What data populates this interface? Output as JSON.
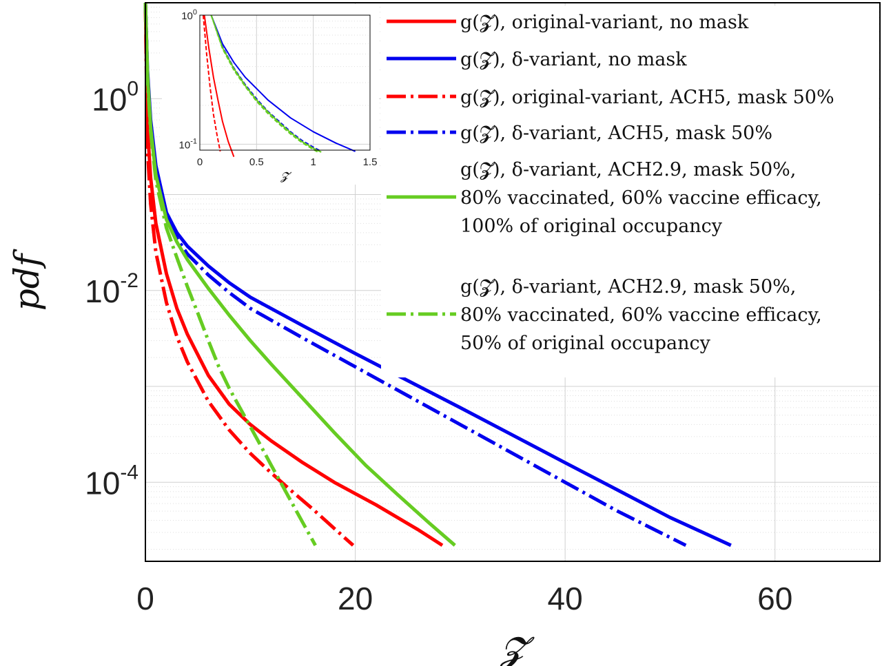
{
  "chart_data": [
    {
      "type": "line",
      "title": "",
      "xlabel": "𝓩",
      "ylabel": "pdf",
      "x_scale": "linear",
      "y_scale": "log",
      "xlim": [
        0,
        70
      ],
      "ylim": [
        1.5e-05,
        10
      ],
      "grid": true,
      "x_ticks": [
        0,
        20,
        40,
        60
      ],
      "x_tick_labels": [
        "0",
        "20",
        "40",
        "60"
      ],
      "y_ticks": [
        1,
        0.01,
        0.0001
      ],
      "y_tick_labels": [
        {
          "base": "10",
          "exp": "0"
        },
        {
          "base": "10",
          "exp": "-2"
        },
        {
          "base": "10",
          "exp": "-4"
        }
      ],
      "legend_placement": "top-right",
      "series": [
        {
          "label_lines": [
            "g(𝓩), original-variant, no mask"
          ],
          "color": "#ff0000",
          "dash": "solid",
          "x": [
            0,
            0.2,
            0.5,
            1,
            2,
            3,
            4,
            6,
            8,
            10,
            12,
            15,
            18,
            22,
            26,
            28.3
          ],
          "y": [
            10,
            0.5,
            0.15,
            0.05,
            0.015,
            0.0065,
            0.0035,
            0.0013,
            0.00065,
            0.0004,
            0.00027,
            0.00016,
            0.0001,
            5.8e-05,
            3.2e-05,
            2.2e-05
          ]
        },
        {
          "label_lines": [
            "g(𝓩), δ-variant, no mask"
          ],
          "color": "#0000ee",
          "dash": "solid",
          "x": [
            0,
            0.2,
            0.5,
            1,
            2,
            3,
            4,
            6,
            8,
            10,
            15,
            20,
            25,
            30,
            35,
            40,
            45,
            50,
            55.8
          ],
          "y": [
            10,
            2,
            0.6,
            0.2,
            0.065,
            0.04,
            0.029,
            0.018,
            0.012,
            0.0085,
            0.0043,
            0.0022,
            0.00115,
            0.0006,
            0.00031,
            0.00016,
            8.3e-05,
            4.3e-05,
            2.2e-05
          ]
        },
        {
          "label_lines": [
            "g(𝓩), original-variant, ACH5, mask 50%"
          ],
          "color": "#ff0000",
          "dash": "dashdot",
          "x": [
            0,
            0.2,
            0.5,
            1,
            2,
            3,
            4,
            6,
            8,
            10,
            12,
            14,
            16,
            18,
            19.8
          ],
          "y": [
            10,
            0.3,
            0.08,
            0.025,
            0.0075,
            0.0033,
            0.0018,
            0.0007,
            0.00035,
            0.0002,
            0.000125,
            8e-05,
            5.2e-05,
            3.3e-05,
            2.2e-05
          ]
        },
        {
          "label_lines": [
            "g(𝓩), δ-variant, ACH5, mask 50%"
          ],
          "color": "#0000ee",
          "dash": "dashdot",
          "x": [
            0,
            0.2,
            0.5,
            1,
            2,
            3,
            4,
            6,
            8,
            10,
            15,
            20,
            25,
            30,
            35,
            40,
            45,
            51.5
          ],
          "y": [
            10,
            1.8,
            0.55,
            0.18,
            0.06,
            0.035,
            0.024,
            0.0145,
            0.0095,
            0.0065,
            0.0032,
            0.0016,
            0.0008,
            0.0004,
            0.0002,
            0.0001,
            5e-05,
            2.2e-05
          ]
        },
        {
          "label_lines": [
            "g(𝓩), δ-variant, ACH2.9, mask 50%,",
            "80% vaccinated, 60% vaccine efficacy,",
            "100% of original occupancy"
          ],
          "color": "#66cc22",
          "dash": "solid",
          "x": [
            0,
            0.2,
            0.5,
            1,
            2,
            3,
            4,
            6,
            8,
            10,
            12,
            15,
            18,
            21,
            24,
            27,
            29.5
          ],
          "y": [
            10,
            1.8,
            0.5,
            0.16,
            0.055,
            0.032,
            0.021,
            0.0105,
            0.0055,
            0.003,
            0.0017,
            0.00075,
            0.00033,
            0.00015,
            7.5e-05,
            3.8e-05,
            2.2e-05
          ]
        },
        {
          "label_lines": [
            "g(𝓩), δ-variant, ACH2.9, mask 50%,",
            "80% vaccinated, 60% vaccine efficacy,",
            "50% of original occupancy"
          ],
          "color": "#66cc22",
          "dash": "dashdot",
          "x": [
            0,
            0.2,
            0.5,
            1,
            2,
            3,
            4,
            5,
            6,
            7,
            8,
            9,
            10,
            11,
            12,
            13,
            14,
            15,
            16.2
          ],
          "y": [
            10,
            1.6,
            0.45,
            0.14,
            0.045,
            0.022,
            0.011,
            0.0058,
            0.003,
            0.0016,
            0.00095,
            0.0006,
            0.00038,
            0.00024,
            0.00015,
            9.5e-05,
            6e-05,
            3.8e-05,
            2.2e-05
          ]
        }
      ]
    },
    {
      "type": "line",
      "title": "",
      "inset": true,
      "xlabel": "𝓩",
      "ylabel": "",
      "x_scale": "linear",
      "y_scale": "log",
      "xlim": [
        0,
        1.5
      ],
      "ylim": [
        0.09,
        1
      ],
      "grid": true,
      "x_ticks": [
        0,
        0.5,
        1,
        1.5
      ],
      "x_tick_labels": [
        "0",
        "0.5",
        "1",
        "1.5"
      ],
      "y_ticks": [
        1,
        0.1
      ],
      "y_tick_labels": [
        {
          "base": "10",
          "exp": "0"
        },
        {
          "base": "10",
          "exp": "-1"
        }
      ],
      "series": [
        {
          "color": "#ff0000",
          "dash": "solid",
          "x": [
            0.04,
            0.08,
            0.12,
            0.16,
            0.2,
            0.25,
            0.3
          ],
          "y": [
            1,
            0.55,
            0.33,
            0.22,
            0.15,
            0.105,
            0.08
          ]
        },
        {
          "color": "#ff0000",
          "dash": "dashed",
          "x": [
            0.03,
            0.06,
            0.09,
            0.12,
            0.15,
            0.18
          ],
          "y": [
            1,
            0.5,
            0.28,
            0.17,
            0.12,
            0.088
          ]
        },
        {
          "color": "#0000ee",
          "dash": "solid",
          "x": [
            0.1,
            0.2,
            0.3,
            0.4,
            0.5,
            0.6,
            0.8,
            1.0,
            1.2,
            1.37
          ],
          "y": [
            1,
            0.6,
            0.43,
            0.33,
            0.27,
            0.22,
            0.16,
            0.125,
            0.102,
            0.088
          ]
        },
        {
          "color": "#0000ee",
          "dash": "dashed",
          "x": [
            0.1,
            0.2,
            0.3,
            0.4,
            0.5,
            0.6,
            0.7,
            0.8,
            0.9,
            1.0,
            1.07
          ],
          "y": [
            1,
            0.57,
            0.39,
            0.29,
            0.225,
            0.18,
            0.15,
            0.125,
            0.107,
            0.095,
            0.088
          ]
        },
        {
          "color": "#66cc22",
          "dash": "solid",
          "x": [
            0.1,
            0.2,
            0.3,
            0.4,
            0.5,
            0.6,
            0.7,
            0.8,
            0.9,
            1.0,
            1.07
          ],
          "y": [
            1,
            0.56,
            0.385,
            0.285,
            0.22,
            0.178,
            0.147,
            0.123,
            0.105,
            0.093,
            0.087
          ]
        },
        {
          "color": "#66cc22",
          "dash": "dashed",
          "x": [
            0.1,
            0.2,
            0.3,
            0.4,
            0.5,
            0.6,
            0.7,
            0.8,
            0.9,
            1.0,
            1.05
          ],
          "y": [
            1,
            0.55,
            0.375,
            0.28,
            0.215,
            0.173,
            0.143,
            0.12,
            0.103,
            0.091,
            0.086
          ]
        }
      ]
    }
  ]
}
